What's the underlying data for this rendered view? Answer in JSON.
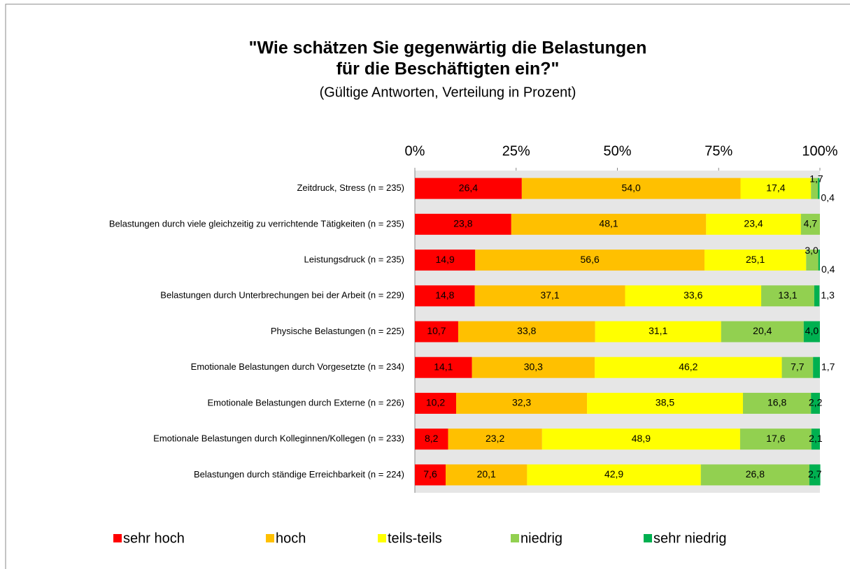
{
  "chart_data": {
    "type": "stacked_bar_horizontal",
    "title": [
      "\"Wie schätzen Sie gegenwärtig die Belastungen",
      "für die Beschäftigten ein?\""
    ],
    "subtitle": "(Gültige Antworten, Verteilung in Prozent)",
    "categories": [
      "Zeitdruck, Stress (n = 235)",
      "Belastungen durch viele gleichzeitig zu verrichtende Tätigkeiten (n = 235)",
      "Leistungsdruck (n = 235)",
      "Belastungen durch Unterbrechungen bei der Arbeit (n = 229)",
      "Physische Belastungen (n = 225)",
      "Emotionale Belastungen durch Vorgesetzte (n = 234)",
      "Emotionale Belastungen durch Externe (n = 226)",
      "Emotionale Belastungen durch Kolleginnen/Kollegen (n = 233)",
      "Belastungen durch ständige Erreichbarkeit (n = 224)"
    ],
    "series": [
      {
        "name": "sehr hoch",
        "color": "#ff0000",
        "values": [
          26.4,
          23.8,
          14.9,
          14.8,
          10.7,
          14.1,
          10.2,
          8.2,
          7.6
        ],
        "value_labels": [
          "26,4",
          "23,8",
          "14,9",
          "14,8",
          "10,7",
          "14,1",
          "10,2",
          "8,2",
          "7,6"
        ]
      },
      {
        "name": "hoch",
        "color": "#ffc000",
        "values": [
          54.0,
          48.1,
          56.6,
          37.1,
          33.8,
          30.3,
          32.3,
          23.2,
          20.1
        ],
        "value_labels": [
          "54,0",
          "48,1",
          "56,6",
          "37,1",
          "33,8",
          "30,3",
          "32,3",
          "23,2",
          "20,1"
        ]
      },
      {
        "name": "teils-teils",
        "color": "#ffff00",
        "values": [
          17.4,
          23.4,
          25.1,
          33.6,
          31.1,
          46.2,
          38.5,
          48.9,
          42.9
        ],
        "value_labels": [
          "17,4",
          "23,4",
          "25,1",
          "33,6",
          "31,1",
          "46,2",
          "38,5",
          "48,9",
          "42,9"
        ]
      },
      {
        "name": "niedrig",
        "color": "#92d050",
        "values": [
          1.7,
          4.7,
          3.0,
          13.1,
          20.4,
          7.7,
          16.8,
          17.6,
          26.8
        ],
        "value_labels": [
          "1,7",
          "4,7",
          "3,0",
          "13,1",
          "20,4",
          "7,7",
          "16,8",
          "17,6",
          "26,8"
        ]
      },
      {
        "name": "sehr niedrig",
        "color": "#00b050",
        "values": [
          0.4,
          null,
          0.4,
          1.3,
          4.0,
          1.7,
          2.2,
          2.1,
          2.7
        ],
        "value_labels": [
          "0,4",
          null,
          "0,4",
          "1,3",
          "4,0",
          "1,7",
          "2,2",
          "2,1",
          "2,7"
        ]
      }
    ],
    "xlim": [
      0,
      100
    ],
    "xticks": [
      {
        "value": 0,
        "label": "0%"
      },
      {
        "value": 25,
        "label": "25%"
      },
      {
        "value": 50,
        "label": "50%"
      },
      {
        "value": 75,
        "label": "75%"
      },
      {
        "value": 100,
        "label": "100%"
      }
    ],
    "legend": "bottom"
  }
}
